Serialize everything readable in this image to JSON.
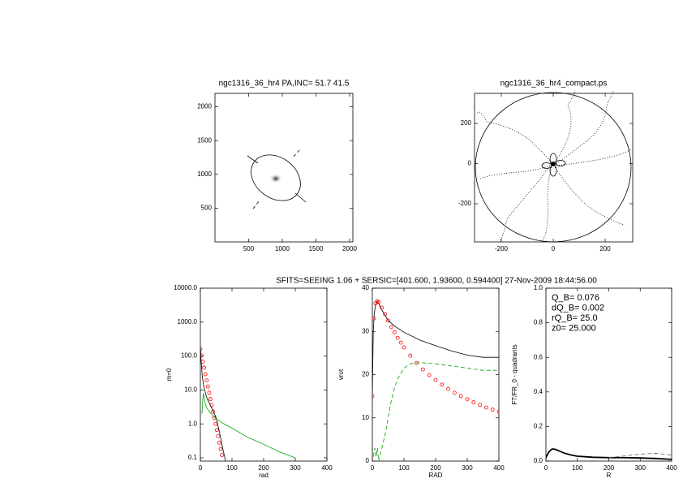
{
  "chart_data": [
    {
      "type": "image",
      "title": "ngc1316_36_hr4 PA,INC= 51.7 41.5",
      "xlim": [
        0,
        2048
      ],
      "xticks": [
        500,
        1000,
        1500,
        2000
      ],
      "ylim": [
        0,
        2200
      ],
      "yticks": [
        500,
        1000,
        1500,
        2000
      ]
    },
    {
      "type": "image",
      "title": "ngc1316_36_hr4_compact.ps",
      "xlim": [
        -303,
        306
      ],
      "xticks": [
        -200,
        0,
        200
      ],
      "ylim": [
        -390,
        350
      ],
      "yticks": [
        -200,
        0,
        200
      ]
    },
    {
      "type": "line",
      "suptitle": "SFITS=SEEING 1.06 + SERSIC=[401.600, 1.93600, 0.594400]  27-Nov-2009 18:44:56.00",
      "xlabel": "rad",
      "ylabel": "m=0",
      "log_y": true,
      "xlim": [
        0,
        400
      ],
      "xticks": [
        0,
        100,
        200,
        300,
        400
      ],
      "ylim": [
        0.08,
        10000
      ],
      "yticks": [
        {
          "value": 0.1,
          "label": "0.1"
        },
        {
          "value": 1,
          "label": "1.0"
        },
        {
          "value": 10,
          "label": "10.0"
        },
        {
          "value": 100,
          "label": "100.0"
        },
        {
          "value": 1000,
          "label": "1000.0"
        },
        {
          "value": 10000,
          "label": "10000.0"
        }
      ],
      "series": [
        {
          "color": "#ff0000",
          "style": "circles",
          "x": [
            0,
            4,
            8,
            12,
            16,
            20,
            24,
            28,
            32,
            36,
            40,
            44,
            48,
            52,
            56,
            60,
            64,
            68
          ],
          "values": [
            158,
            104,
            68,
            45,
            29,
            19,
            12.6,
            8.3,
            5.4,
            3.6,
            2.3,
            1.5,
            1.0,
            0.66,
            0.43,
            0.28,
            0.18,
            0.12
          ]
        },
        {
          "color": "#000000",
          "style": "solid",
          "x": [
            0,
            3,
            6,
            10,
            15,
            20,
            30,
            40,
            50,
            60,
            70,
            80
          ],
          "values": [
            200,
            60,
            25,
            14,
            9,
            6,
            3.8,
            2.5,
            1.5,
            0.6,
            0.2,
            0.08
          ]
        },
        {
          "color": "#00a000",
          "style": "solid",
          "x": [
            5,
            8,
            10,
            15,
            20,
            30,
            50,
            75,
            100,
            150,
            200,
            250,
            300
          ],
          "values": [
            2,
            6,
            8,
            4,
            3,
            2.2,
            1.4,
            1.0,
            0.75,
            0.4,
            0.25,
            0.15,
            0.1
          ]
        }
      ]
    },
    {
      "type": "line",
      "xlabel": "RAD",
      "ylabel": "vrot",
      "log_y": false,
      "xlim": [
        0,
        400
      ],
      "xticks": [
        0,
        100,
        200,
        300,
        400
      ],
      "ylim": [
        0,
        40
      ],
      "yticks": [
        0,
        10,
        20,
        30,
        40
      ],
      "series": [
        {
          "color": "#000000",
          "style": "solid",
          "x": [
            0,
            3,
            6,
            10,
            15,
            20,
            30,
            50,
            75,
            100,
            150,
            200,
            250,
            300,
            350,
            400
          ],
          "values": [
            15,
            30,
            34,
            36,
            37,
            36.5,
            35,
            32.5,
            31,
            29.8,
            28,
            26.7,
            25.5,
            24.5,
            24,
            24
          ]
        },
        {
          "color": "#ff0000",
          "style": "circles",
          "x": [
            0,
            5,
            10,
            15,
            20,
            30,
            40,
            50,
            60,
            70,
            80,
            90,
            100,
            120,
            140,
            160,
            180,
            200,
            220,
            240,
            260,
            280,
            300,
            320,
            340,
            360,
            380,
            400
          ],
          "values": [
            15,
            33,
            36.5,
            37,
            36.8,
            35.5,
            34,
            32.5,
            31,
            29.8,
            28.5,
            27.4,
            26.3,
            24.4,
            22.7,
            21.2,
            19.9,
            18.8,
            17.7,
            16.7,
            15.8,
            15,
            14.3,
            13.6,
            13,
            12.4,
            11.9,
            11.4
          ]
        },
        {
          "color": "#00a000",
          "style": "dashed",
          "x": [
            3,
            8,
            12,
            16,
            20,
            25,
            30,
            40,
            50,
            60,
            70,
            80,
            100,
            120,
            150,
            200,
            250,
            300,
            350,
            400
          ],
          "values": [
            1,
            3,
            1,
            3,
            0,
            1.5,
            3,
            6,
            10,
            14,
            17,
            19,
            21.5,
            22.5,
            22.8,
            22.5,
            22,
            21.5,
            21,
            21
          ]
        }
      ]
    },
    {
      "type": "line",
      "xlabel": "R",
      "ylabel": "FT/FR_0 - quadrants",
      "log_y": false,
      "annotations": [
        "Q_B=  0.076",
        "dQ_B=  0.002",
        "rQ_B=   25.0",
        "z0= 25.000"
      ],
      "xlim": [
        0,
        400
      ],
      "xticks": [
        0,
        100,
        200,
        300,
        400
      ],
      "ylim": [
        0,
        1
      ],
      "yticks": [
        {
          "value": 0,
          "label": "0.0"
        },
        {
          "value": 0.2,
          "label": "0.2"
        },
        {
          "value": 0.4,
          "label": "0.4"
        },
        {
          "value": 0.6,
          "label": "0.6"
        },
        {
          "value": 0.8,
          "label": "0.8"
        },
        {
          "value": 1,
          "label": "1.0"
        }
      ],
      "series": [
        {
          "color": "#000000",
          "style": "thick",
          "x": [
            0,
            10,
            20,
            30,
            40,
            60,
            80,
            100,
            150,
            200,
            250,
            300,
            350,
            400
          ],
          "values": [
            0.02,
            0.055,
            0.07,
            0.068,
            0.06,
            0.045,
            0.035,
            0.028,
            0.022,
            0.02,
            0.02,
            0.018,
            0.015,
            0.01
          ]
        },
        {
          "color": "#666666",
          "style": "dashed",
          "x": [
            200,
            250,
            300,
            350,
            400
          ],
          "values": [
            0.02,
            0.03,
            0.04,
            0.045,
            0.035
          ]
        }
      ]
    }
  ]
}
